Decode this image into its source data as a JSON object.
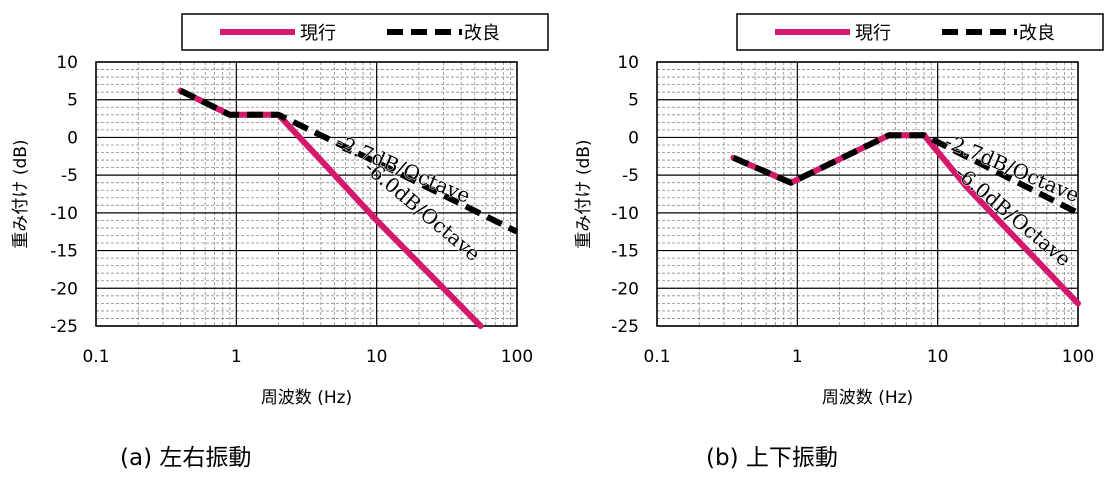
{
  "chart_data": [
    {
      "type": "line",
      "x_scale": "log",
      "xlabel": "周波数 (Hz)",
      "ylabel": "重み付け (dB)",
      "xlim": [
        0.1,
        100
      ],
      "ylim": [
        -25,
        10
      ],
      "x_ticks": [
        "0.1",
        "1",
        "10",
        "100"
      ],
      "y_ticks": [
        "10",
        "5",
        "0",
        "-5",
        "-10",
        "-15",
        "-20",
        "-25"
      ],
      "grid": true,
      "legend": "top",
      "series": [
        {
          "name": "現行",
          "color": "#d4186c",
          "dash": "solid",
          "points": [
            [
              0.4,
              6.2
            ],
            [
              0.9,
              3.0
            ],
            [
              2.0,
              3.0
            ],
            [
              4.0,
              -3.0
            ],
            [
              10.0,
              -11.0
            ],
            [
              55.0,
              -25.0
            ]
          ]
        },
        {
          "name": "改良",
          "color": "#000000",
          "dash": "dashed",
          "points": [
            [
              0.4,
              6.2
            ],
            [
              0.9,
              3.0
            ],
            [
              2.0,
              3.0
            ],
            [
              10.0,
              -3.3
            ],
            [
              100.0,
              -12.5
            ]
          ]
        }
      ],
      "annotations": [
        {
          "text": "-2.7dB/Octave",
          "x": 5.0,
          "y": -1.3,
          "angle_deg": 23
        },
        {
          "text": "-6.0dB/Octave",
          "x": 8.0,
          "y": -4.3,
          "angle_deg": 40
        }
      ],
      "caption": "(a) 左右振動"
    },
    {
      "type": "line",
      "x_scale": "log",
      "xlabel": "周波数 (Hz)",
      "ylabel": "重み付け (dB)",
      "xlim": [
        0.1,
        100
      ],
      "ylim": [
        -25,
        10
      ],
      "x_ticks": [
        "0.1",
        "1",
        "10",
        "100"
      ],
      "y_ticks": [
        "10",
        "5",
        "0",
        "-5",
        "-10",
        "-15",
        "-20",
        "-25"
      ],
      "grid": true,
      "legend": "top",
      "series": [
        {
          "name": "現行",
          "color": "#d4186c",
          "dash": "solid",
          "points": [
            [
              0.35,
              -2.7
            ],
            [
              0.9,
              -6.0
            ],
            [
              4.5,
              0.3
            ],
            [
              8.0,
              0.3
            ],
            [
              16.0,
              -6.5
            ],
            [
              100.0,
              -22.0
            ]
          ]
        },
        {
          "name": "改良",
          "color": "#000000",
          "dash": "dashed",
          "points": [
            [
              0.35,
              -2.7
            ],
            [
              0.9,
              -6.0
            ],
            [
              4.5,
              0.3
            ],
            [
              8.0,
              0.3
            ],
            [
              100.0,
              -10.0
            ]
          ]
        }
      ],
      "annotations": [
        {
          "text": "-2.7dB/Octave",
          "x": 11.0,
          "y": -1.2,
          "angle_deg": 23
        },
        {
          "text": "-6.0dB/Octave",
          "x": 13.0,
          "y": -5.0,
          "angle_deg": 40
        }
      ],
      "caption": "(b) 上下振動"
    }
  ]
}
